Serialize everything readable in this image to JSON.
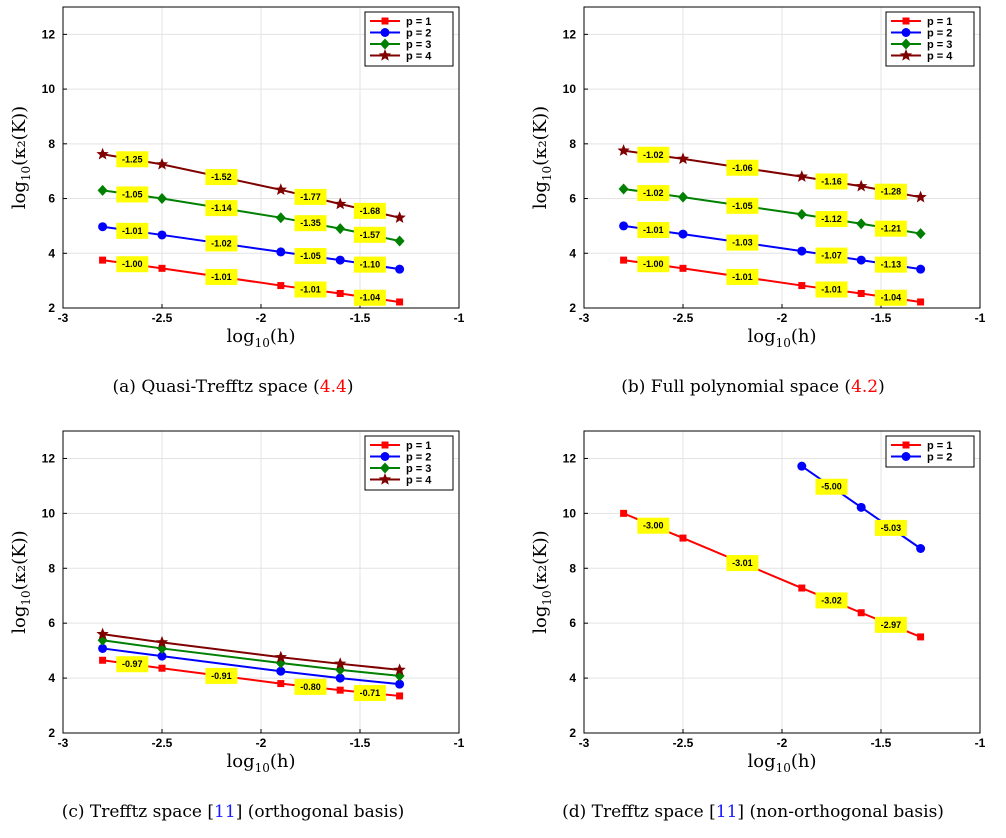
{
  "chart_data": [
    {
      "type": "line",
      "panel": "a",
      "caption_pre": "(a) Quasi-Trefftz space (",
      "caption_ref": "4.4",
      "caption_post": ")",
      "xlabel_base": "log",
      "xlabel_sub": "10",
      "xlabel_arg": "(h)",
      "ylabel_base": "log",
      "ylabel_sub": "10",
      "ylabel_arg": "(κ₂(K))",
      "xlim": [
        -3,
        -1
      ],
      "ylim": [
        2,
        13
      ],
      "xticks": [
        "-3",
        "-2.5",
        "-2",
        "-1.5",
        "-1"
      ],
      "yticks": [
        "2",
        "4",
        "6",
        "8",
        "10",
        "12"
      ],
      "grid": true,
      "legend_position": "top-right",
      "x": [
        -2.8,
        -2.5,
        -1.9,
        -1.6,
        -1.3
      ],
      "series": [
        {
          "name": "p = 1",
          "color": "#ff0000",
          "marker": "square",
          "values": [
            3.75,
            3.45,
            2.82,
            2.53,
            2.22
          ],
          "slopes": [
            "-1.00",
            "-1.01",
            "-1.01",
            "-1.04"
          ]
        },
        {
          "name": "p = 2",
          "color": "#0000ff",
          "marker": "circle",
          "values": [
            4.97,
            4.67,
            4.05,
            3.75,
            3.42
          ],
          "slopes": [
            "-1.01",
            "-1.02",
            "-1.05",
            "-1.10"
          ]
        },
        {
          "name": "p = 3",
          "color": "#008000",
          "marker": "diamond",
          "values": [
            6.3,
            6.0,
            5.3,
            4.9,
            4.45
          ],
          "slopes": [
            "-1.05",
            "-1.14",
            "-1.35",
            "-1.57"
          ]
        },
        {
          "name": "p = 4",
          "color": "#800000",
          "marker": "star",
          "values": [
            7.62,
            7.25,
            6.32,
            5.8,
            5.3
          ],
          "slopes": [
            "-1.25",
            "-1.52",
            "-1.77",
            "-1.68"
          ]
        }
      ]
    },
    {
      "type": "line",
      "panel": "b",
      "caption_pre": "(b) Full polynomial space (",
      "caption_ref": "4.2",
      "caption_post": ")",
      "xlabel_base": "log",
      "xlabel_sub": "10",
      "xlabel_arg": "(h)",
      "ylabel_base": "log",
      "ylabel_sub": "10",
      "ylabel_arg": "(κ₂(K))",
      "xlim": [
        -3,
        -1
      ],
      "ylim": [
        2,
        13
      ],
      "xticks": [
        "-3",
        "-2.5",
        "-2",
        "-1.5",
        "-1"
      ],
      "yticks": [
        "2",
        "4",
        "6",
        "8",
        "10",
        "12"
      ],
      "grid": true,
      "legend_position": "top-right",
      "x": [
        -2.8,
        -2.5,
        -1.9,
        -1.6,
        -1.3
      ],
      "series": [
        {
          "name": "p = 1",
          "color": "#ff0000",
          "marker": "square",
          "values": [
            3.75,
            3.45,
            2.82,
            2.53,
            2.22
          ],
          "slopes": [
            "-1.00",
            "-1.01",
            "-1.01",
            "-1.04"
          ]
        },
        {
          "name": "p = 2",
          "color": "#0000ff",
          "marker": "circle",
          "values": [
            5.0,
            4.7,
            4.08,
            3.75,
            3.42
          ],
          "slopes": [
            "-1.01",
            "-1.03",
            "-1.07",
            "-1.13"
          ]
        },
        {
          "name": "p = 3",
          "color": "#008000",
          "marker": "diamond",
          "values": [
            6.35,
            6.05,
            5.42,
            5.08,
            4.72
          ],
          "slopes": [
            "-1.02",
            "-1.05",
            "-1.12",
            "-1.21"
          ]
        },
        {
          "name": "p = 4",
          "color": "#800000",
          "marker": "star",
          "values": [
            7.75,
            7.45,
            6.8,
            6.45,
            6.05
          ],
          "slopes": [
            "-1.02",
            "-1.06",
            "-1.16",
            "-1.28"
          ]
        }
      ]
    },
    {
      "type": "line",
      "panel": "c",
      "caption_pre": "(c) Trefftz space [",
      "caption_ref": "11",
      "caption_post": "] (orthogonal basis)",
      "xlabel_base": "log",
      "xlabel_sub": "10",
      "xlabel_arg": "(h)",
      "ylabel_base": "log",
      "ylabel_sub": "10",
      "ylabel_arg": "(κ₂(K))",
      "xlim": [
        -3,
        -1
      ],
      "ylim": [
        2,
        13
      ],
      "xticks": [
        "-3",
        "-2.5",
        "-2",
        "-1.5",
        "-1"
      ],
      "yticks": [
        "2",
        "4",
        "6",
        "8",
        "10",
        "12"
      ],
      "grid": true,
      "legend_position": "top-right",
      "x": [
        -2.8,
        -2.5,
        -1.9,
        -1.6,
        -1.3
      ],
      "series": [
        {
          "name": "p = 1",
          "color": "#ff0000",
          "marker": "square",
          "values": [
            4.65,
            4.36,
            3.8,
            3.56,
            3.35
          ],
          "slopes": [
            "-0.97",
            "-0.91",
            "-0.80",
            "-0.71"
          ]
        },
        {
          "name": "p = 2",
          "color": "#0000ff",
          "marker": "circle",
          "values": [
            5.08,
            4.8,
            4.25,
            4.0,
            3.78
          ],
          "slopes": []
        },
        {
          "name": "p = 3",
          "color": "#008000",
          "marker": "diamond",
          "values": [
            5.38,
            5.08,
            4.55,
            4.3,
            4.08
          ],
          "slopes": []
        },
        {
          "name": "p = 4",
          "color": "#800000",
          "marker": "star",
          "values": [
            5.6,
            5.3,
            4.76,
            4.52,
            4.3
          ],
          "slopes": []
        }
      ]
    },
    {
      "type": "line",
      "panel": "d",
      "caption_pre": "(d) Trefftz space [",
      "caption_ref": "11",
      "caption_post": "] (non-orthogonal basis)",
      "xlabel_base": "log",
      "xlabel_sub": "10",
      "xlabel_arg": "(h)",
      "ylabel_base": "log",
      "ylabel_sub": "10",
      "ylabel_arg": "(κ₂(K))",
      "xlim": [
        -3,
        -1
      ],
      "ylim": [
        2,
        13
      ],
      "xticks": [
        "-3",
        "-2.5",
        "-2",
        "-1.5",
        "-1"
      ],
      "yticks": [
        "2",
        "4",
        "6",
        "8",
        "10",
        "12"
      ],
      "grid": true,
      "legend_position": "top-right",
      "x": [
        -2.8,
        -2.5,
        -1.9,
        -1.6,
        -1.3
      ],
      "series": [
        {
          "name": "p = 1",
          "color": "#ff0000",
          "marker": "square",
          "x": [
            -2.8,
            -2.5,
            -1.9,
            -1.6,
            -1.3
          ],
          "values": [
            10.0,
            9.1,
            7.28,
            6.38,
            5.5
          ],
          "slopes": [
            "-3.00",
            "-3.01",
            "-3.02",
            "-2.97"
          ]
        },
        {
          "name": "p = 2",
          "color": "#0000ff",
          "marker": "circle",
          "x": [
            -1.9,
            -1.6,
            -1.3
          ],
          "values": [
            11.72,
            10.22,
            8.72
          ],
          "slopes": [
            "-5.00",
            "-5.03"
          ]
        }
      ]
    }
  ],
  "colors": {
    "grid": "#e3e3e3",
    "label_box": "#ffff00",
    "reference": "#ff0000"
  }
}
